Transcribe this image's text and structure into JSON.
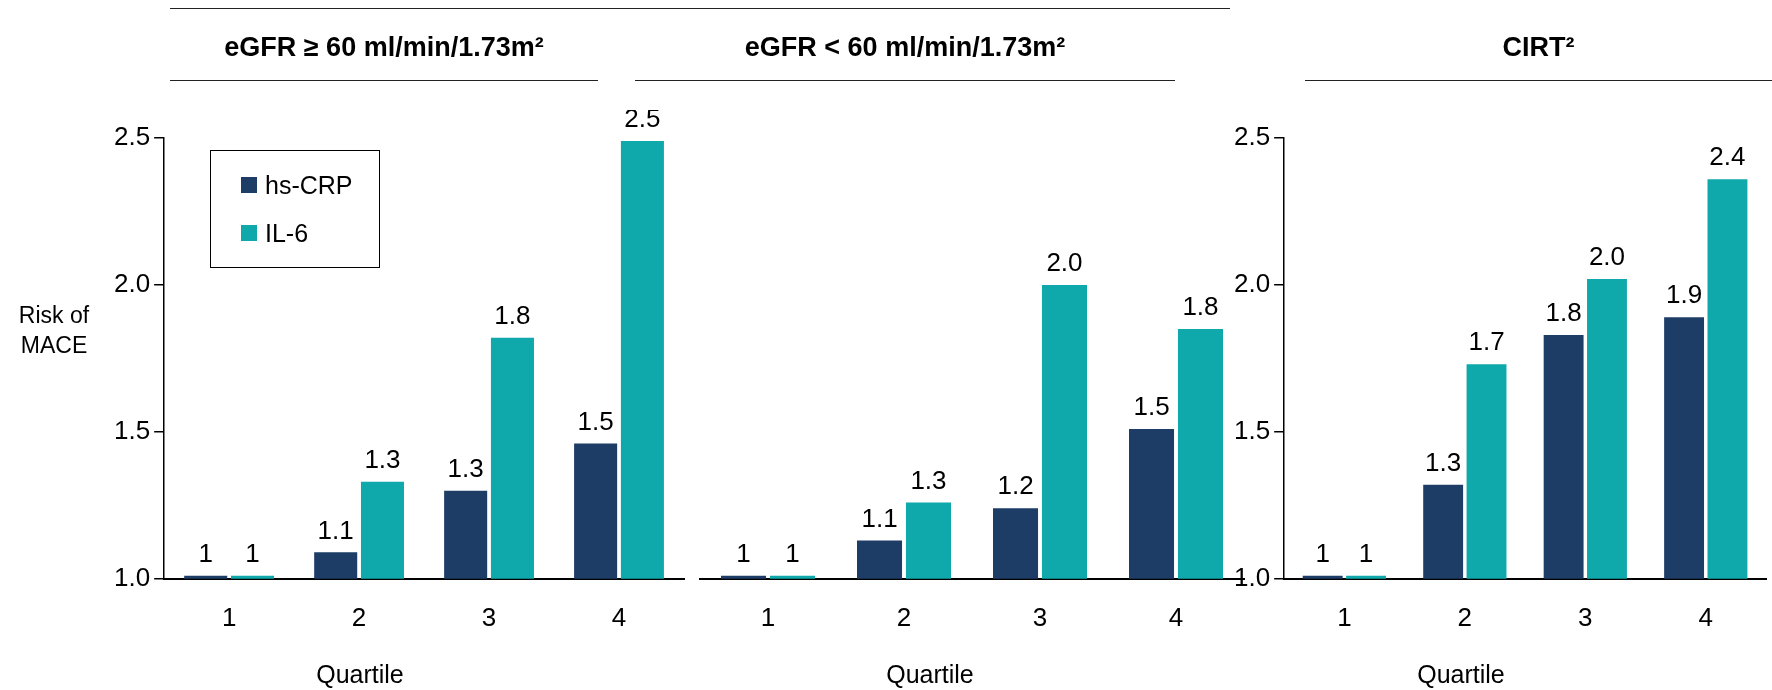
{
  "chart_data": [
    {
      "type": "bar",
      "title": "eGFR ≥ 60 ml/min/1.73m²",
      "xlabel": "Quartile",
      "ylabel": "Risk of MACE",
      "categories": [
        "1",
        "2",
        "3",
        "4"
      ],
      "ylim": [
        1.0,
        2.5
      ],
      "yticks": [
        {
          "value": 1.0,
          "label": "1.0"
        },
        {
          "value": 1.5,
          "label": "1.5"
        },
        {
          "value": 2.0,
          "label": "2.0"
        },
        {
          "value": 2.5,
          "label": "2.5"
        }
      ],
      "grid": false,
      "legend": "top left",
      "series": [
        {
          "name": "hs-CRP",
          "color": "#1d3c66",
          "values": [
            1.01,
            1.09,
            1.3,
            1.46
          ],
          "value_labels": [
            "1",
            "1.1",
            "1.3",
            "1.5"
          ]
        },
        {
          "name": "IL-6",
          "color": "#0fa8ab",
          "values": [
            1.01,
            1.33,
            1.82,
            2.49
          ],
          "value_labels": [
            "1",
            "1.3",
            "1.8",
            "2.5"
          ]
        }
      ]
    },
    {
      "type": "bar",
      "title": "eGFR < 60 ml/min/1.73m²",
      "xlabel": "Quartile",
      "categories": [
        "1",
        "2",
        "3",
        "4"
      ],
      "ylim": [
        1.0,
        2.5
      ],
      "tick_labels": "x",
      "grid": false,
      "series": [
        {
          "color": "#1d3c66",
          "values": [
            1.01,
            1.13,
            1.24,
            1.51
          ],
          "value_labels": [
            "1",
            "1.1",
            "1.2",
            "1.5"
          ]
        },
        {
          "color": "#0fa8ab",
          "values": [
            1.01,
            1.26,
            2.0,
            1.85
          ],
          "value_labels": [
            "1",
            "1.3",
            "2.0",
            "1.8"
          ]
        }
      ]
    },
    {
      "type": "bar",
      "title": "CIRT²",
      "xlabel": "Quartile",
      "categories": [
        "1",
        "2",
        "3",
        "4"
      ],
      "ylim": [
        1.0,
        2.5
      ],
      "yticks": [
        {
          "value": 1.0,
          "label": "1.0"
        },
        {
          "value": 1.5,
          "label": "1.5"
        },
        {
          "value": 2.0,
          "label": "2.0"
        },
        {
          "value": 2.5,
          "label": "2.5"
        }
      ],
      "grid": false,
      "series": [
        {
          "color": "#1d3c66",
          "values": [
            1.01,
            1.32,
            1.83,
            1.89
          ],
          "value_labels": [
            "1",
            "1.3",
            "1.8",
            "1.9"
          ]
        },
        {
          "color": "#0fa8ab",
          "values": [
            1.01,
            1.73,
            2.02,
            2.36
          ],
          "value_labels": [
            "1",
            "1.7",
            "2.0",
            "2.4"
          ]
        }
      ]
    }
  ]
}
